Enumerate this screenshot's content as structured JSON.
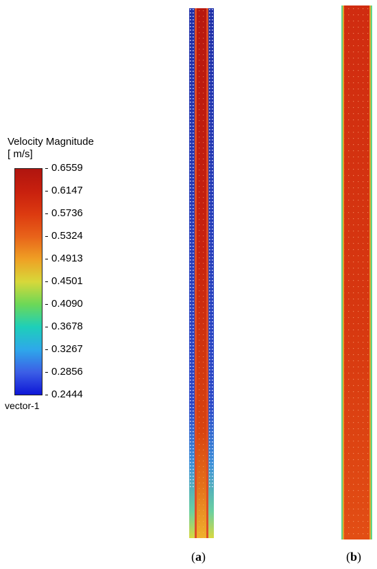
{
  "legend": {
    "title": "Velocity Magnitude",
    "unit": "[ m/s]",
    "ticks": [
      "0.6559",
      "0.6147",
      "0.5736",
      "0.5324",
      "0.4913",
      "0.4501",
      "0.4090",
      "0.3678",
      "0.3267",
      "0.2856",
      "0.2444"
    ],
    "vector_label": "vector-1",
    "colors": [
      "#b0150f",
      "#dc3a10",
      "#efa024",
      "#d7d83a",
      "#6cd857",
      "#1ecfb9",
      "#2ea8ea",
      "#0e16d6"
    ]
  },
  "panels": [
    {
      "id": "a",
      "label_open": "(",
      "label_letter": "a",
      "label_close": ")"
    },
    {
      "id": "b",
      "label_open": "(",
      "label_letter": "b",
      "label_close": ")"
    }
  ]
}
